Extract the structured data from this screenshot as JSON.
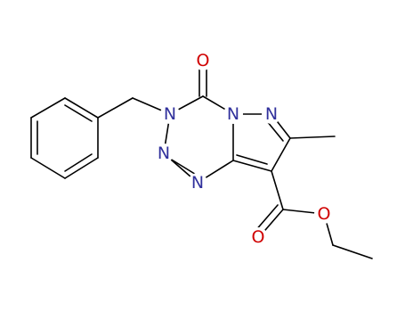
{
  "atoms": [
    "O",
    "N",
    "N",
    "N",
    "N",
    "N",
    "O",
    "O"
  ]
}
